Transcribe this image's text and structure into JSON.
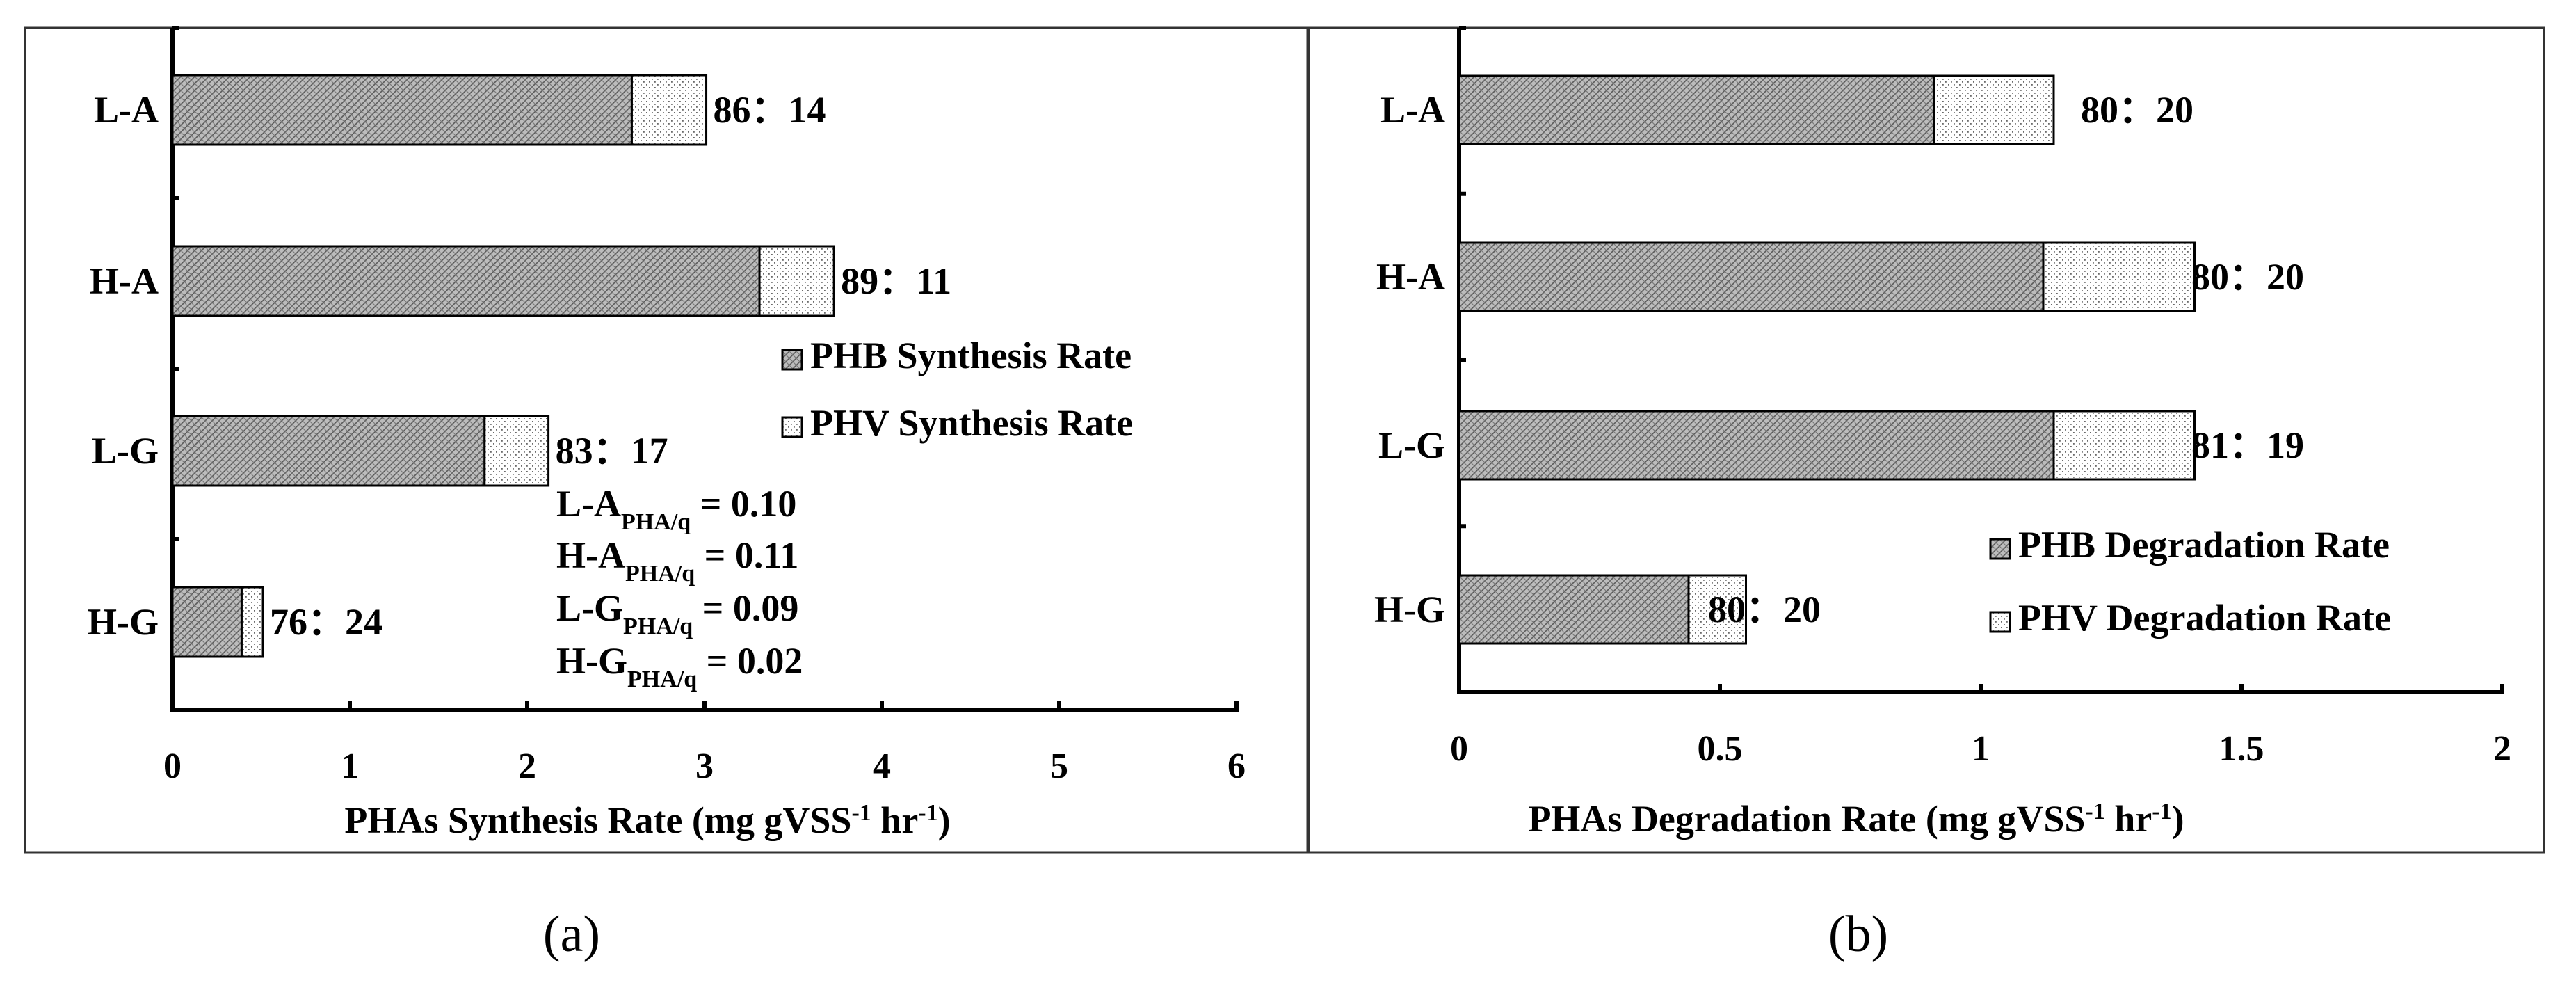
{
  "chart_data": [
    {
      "panel_label": "(a)",
      "type": "bar",
      "orientation": "horizontal",
      "stacked": true,
      "categories": [
        "L-A",
        "H-A",
        "L-G",
        "H-G"
      ],
      "series": [
        {
          "name": "PHB Synthesis Rate",
          "values": [
            2.59,
            3.31,
            1.76,
            0.39
          ]
        },
        {
          "name": "PHV Synthesis Rate",
          "values": [
            0.42,
            0.42,
            0.36,
            0.12
          ]
        }
      ],
      "ratio_labels": [
        "86：14",
        "89：11",
        "83：17",
        "76：24"
      ],
      "xlabel": {
        "main": "PHAs Synthesis Rate (mg gVSS",
        "sup1": "-1",
        "mid": " hr",
        "sup2": "-1",
        "end": ")"
      },
      "xlim": [
        0,
        6
      ],
      "xticks": [
        0,
        1,
        2,
        3,
        4,
        5,
        6
      ],
      "xtick_labels": [
        "0",
        "1",
        "2",
        "3",
        "4",
        "5",
        "6"
      ],
      "legend": [
        "PHB Synthesis Rate",
        "PHV Synthesis Rate"
      ],
      "legend_position": "right",
      "annotations": [
        {
          "label": "L-A",
          "sub": "PHA/q",
          "value": " = 0.10"
        },
        {
          "label": "H-A",
          "sub": "PHA/q",
          "value": " = 0.11"
        },
        {
          "label": "L-G",
          "sub": "PHA/q",
          "value": " = 0.09"
        },
        {
          "label": "H-G",
          "sub": "PHA/q",
          "value": " = 0.02"
        }
      ]
    },
    {
      "panel_label": "(b)",
      "type": "bar",
      "orientation": "horizontal",
      "stacked": true,
      "categories": [
        "L-A",
        "H-A",
        "L-G",
        "H-G"
      ],
      "series": [
        {
          "name": "PHB Degradation Rate",
          "values": [
            0.91,
            1.12,
            1.14,
            0.44
          ]
        },
        {
          "name": "PHV Degradation Rate",
          "values": [
            0.23,
            0.29,
            0.27,
            0.11
          ]
        }
      ],
      "ratio_labels": [
        "80：20",
        "80：20",
        "81：19",
        "80：20"
      ],
      "xlabel": {
        "main": "PHAs Degradation Rate (mg gVSS",
        "sup1": "-1",
        "mid": " hr",
        "sup2": "-1",
        "end": ")"
      },
      "xlim": [
        0,
        2
      ],
      "xticks": [
        0,
        0.5,
        1,
        1.5,
        2
      ],
      "xtick_labels": [
        "0",
        "0.5",
        "1",
        "1.5",
        "2"
      ],
      "legend": [
        "PHB Degradation Rate",
        "PHV Degradation Rate"
      ],
      "legend_position": "bottom-right",
      "annotations": []
    }
  ]
}
